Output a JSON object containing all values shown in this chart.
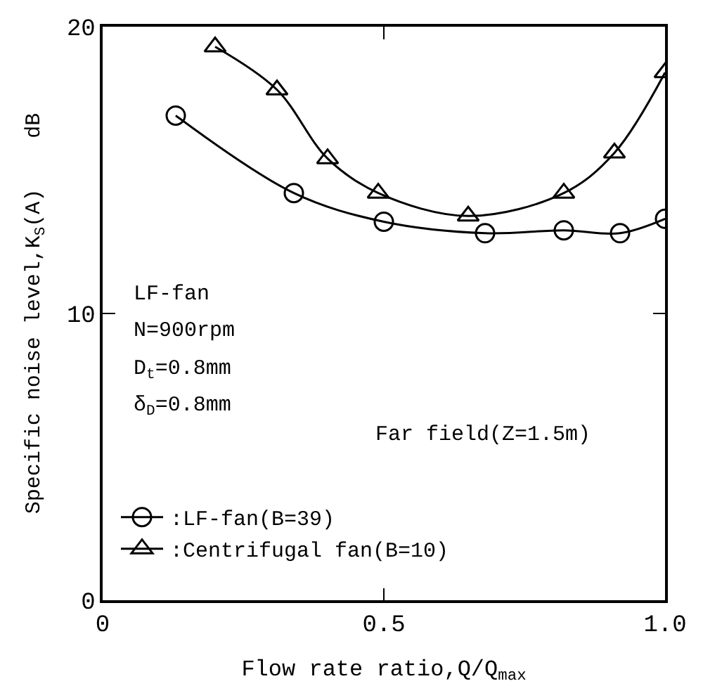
{
  "chart_data": {
    "type": "line",
    "xlabel": "Flow rate ratio,Q/Q$_{max}$",
    "ylabel": "Specific noise level,K$_{S}$(A)    dB",
    "xlim": [
      0,
      1.0
    ],
    "xticks": [
      0,
      0.5,
      {
        "value": 1.0,
        "label": "1.0"
      }
    ],
    "ylim": [
      0,
      20
    ],
    "yticks": [
      0,
      10,
      20
    ],
    "legend": "bottom left",
    "line_style": "solid",
    "series": [
      {
        "name": ":LF-fan(B=39)",
        "color": "#000000",
        "marker": "circle",
        "x": [
          0.13,
          0.34,
          0.5,
          0.68,
          0.82,
          0.92,
          1.0
        ],
        "values": [
          16.9,
          14.2,
          13.2,
          12.8,
          12.9,
          12.8,
          13.3
        ]
      },
      {
        "name": ":Centrifugal fan(B=10)",
        "color": "#000000",
        "marker": "triangle",
        "x": [
          0.2,
          0.31,
          0.4,
          0.49,
          0.65,
          0.82,
          0.91,
          1.0
        ],
        "values": [
          19.3,
          17.8,
          15.4,
          14.2,
          13.4,
          14.2,
          15.6,
          18.4
        ]
      }
    ],
    "annotations": [
      "LF-fan",
      "N=900rpm",
      "D$_{t}$=0.8mm",
      "δ$_{D}$=0.8mm",
      "Far field(Z=1.5m)"
    ]
  }
}
